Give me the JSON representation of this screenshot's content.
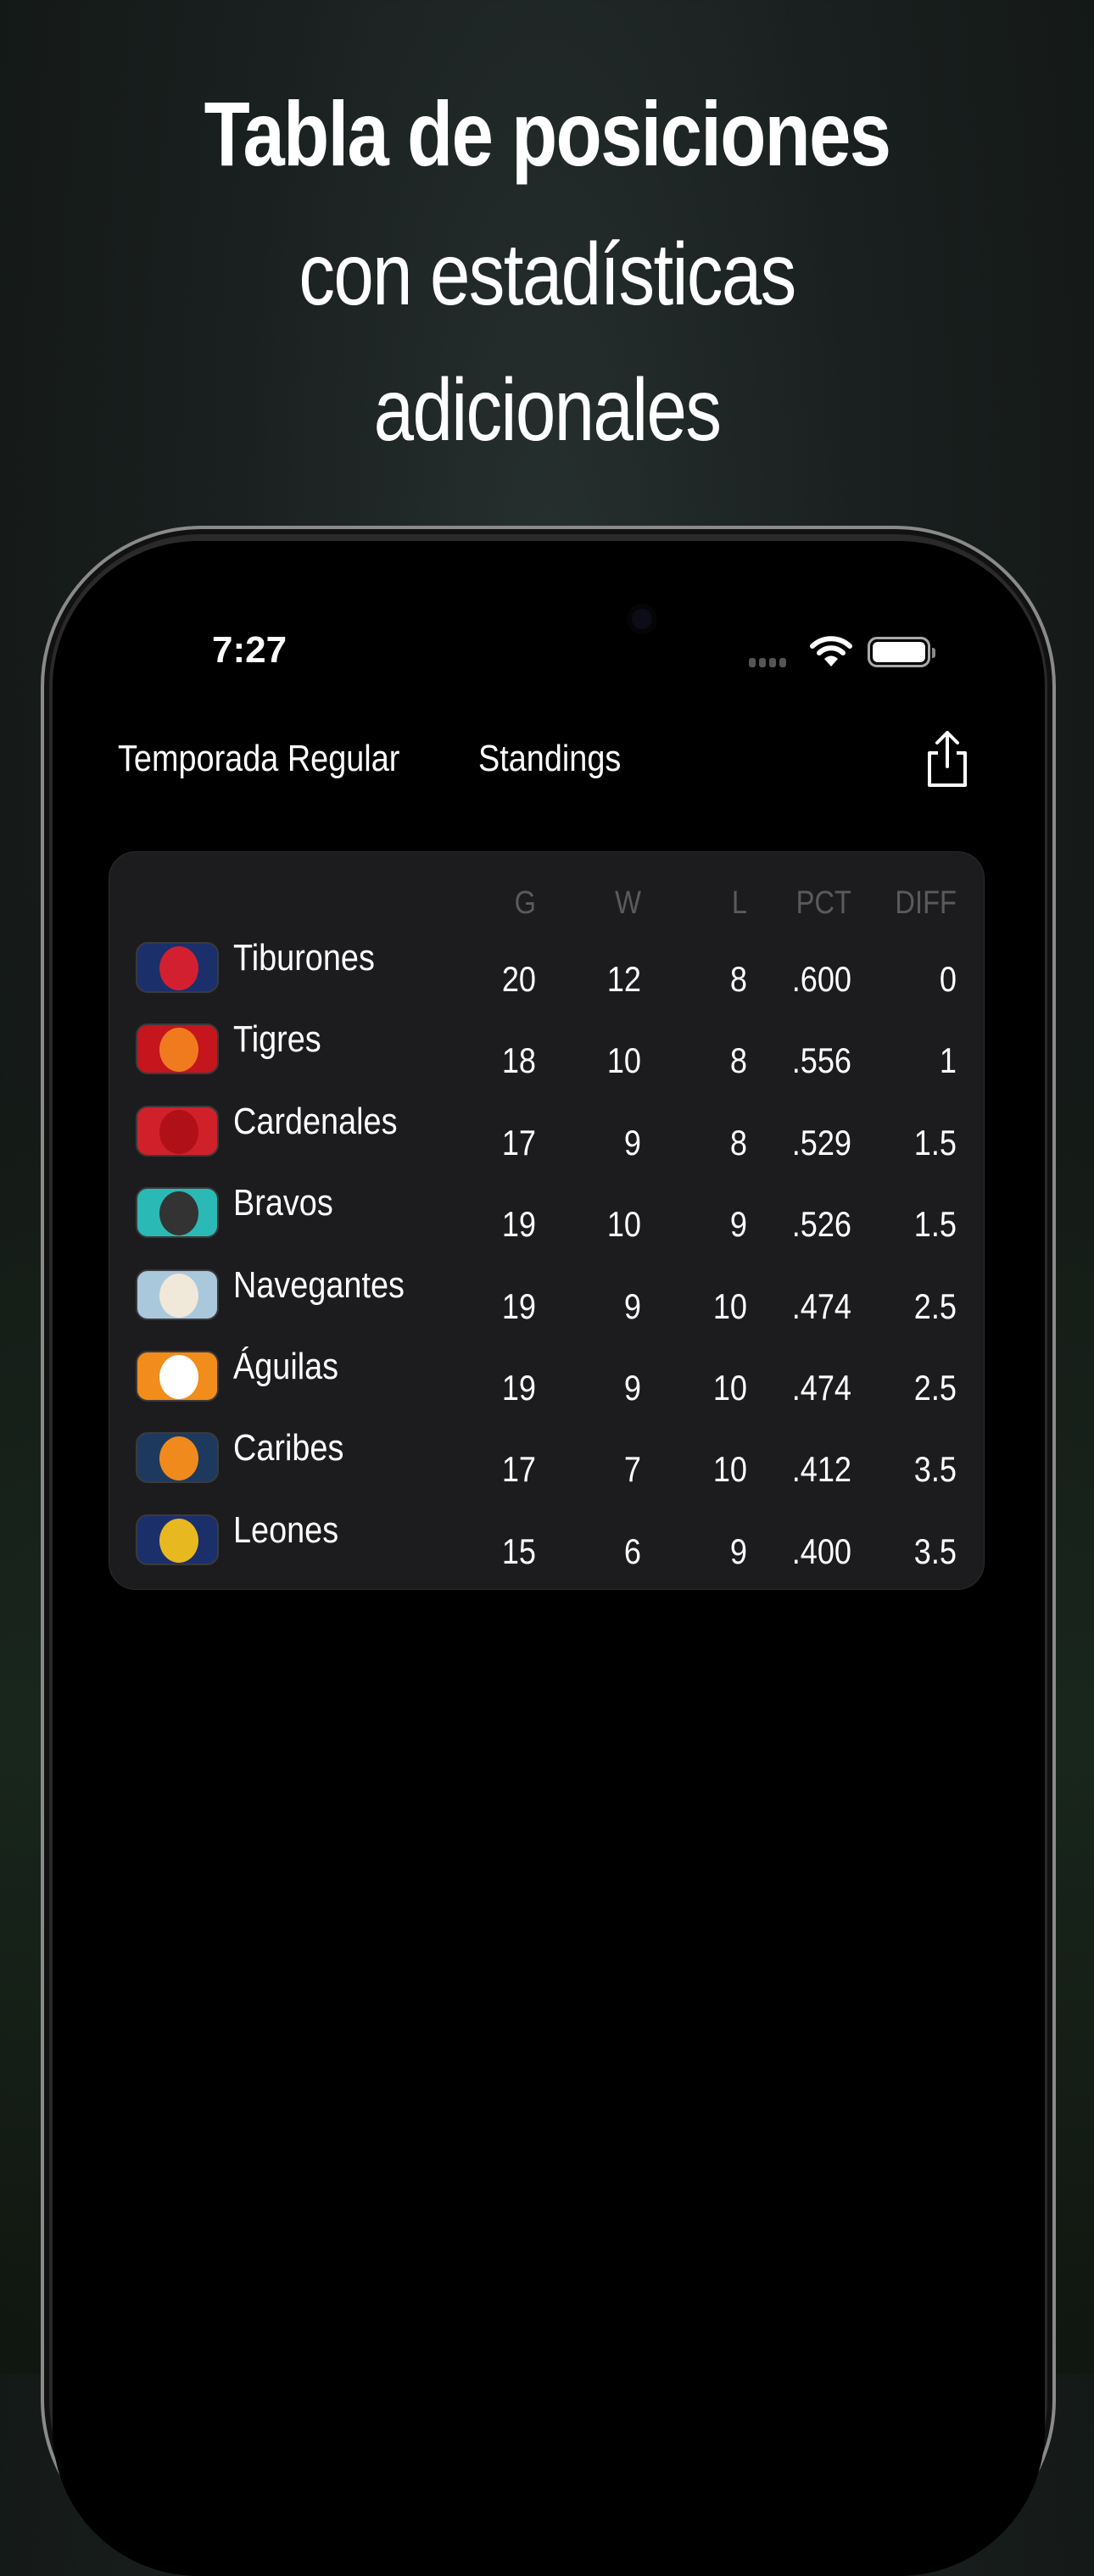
{
  "headline": {
    "line1": "Tabla de posiciones",
    "line2": "con estadísticas",
    "line3": "adicionales"
  },
  "status_bar": {
    "time": "7:27"
  },
  "nav": {
    "title": "Temporada Regular",
    "subtitle": "Standings",
    "share_icon": "share-icon"
  },
  "table": {
    "headers": [
      "G",
      "W",
      "L",
      "PCT",
      "DIFF"
    ],
    "rows": [
      {
        "team": "Tiburones",
        "logo_colors": [
          "#1b2f6b",
          "#d22030"
        ],
        "G": "20",
        "W": "12",
        "L": "8",
        "PCT": ".600",
        "DIFF": "0"
      },
      {
        "team": "Tigres",
        "logo_colors": [
          "#c4161c",
          "#f07b1f"
        ],
        "G": "18",
        "W": "10",
        "L": "8",
        "PCT": ".556",
        "DIFF": "1"
      },
      {
        "team": "Cardenales",
        "logo_colors": [
          "#d0202a",
          "#b01018"
        ],
        "G": "17",
        "W": "9",
        "L": "8",
        "PCT": ".529",
        "DIFF": "1.5"
      },
      {
        "team": "Bravos",
        "logo_colors": [
          "#2bb9b5",
          "#333"
        ],
        "G": "19",
        "W": "10",
        "L": "9",
        "PCT": ".526",
        "DIFF": "1.5"
      },
      {
        "team": "Navegantes",
        "logo_colors": [
          "#a9c8dc",
          "#f0e8d8"
        ],
        "G": "19",
        "W": "9",
        "L": "10",
        "PCT": ".474",
        "DIFF": "2.5"
      },
      {
        "team": "Águilas",
        "logo_colors": [
          "#f28c1a",
          "#fff"
        ],
        "G": "19",
        "W": "9",
        "L": "10",
        "PCT": ".474",
        "DIFF": "2.5"
      },
      {
        "team": "Caribes",
        "logo_colors": [
          "#1d3a5e",
          "#f08a1c"
        ],
        "G": "17",
        "W": "7",
        "L": "10",
        "PCT": ".412",
        "DIFF": "3.5"
      },
      {
        "team": "Leones",
        "logo_colors": [
          "#1b2f6b",
          "#e8b820"
        ],
        "G": "15",
        "W": "6",
        "L": "9",
        "PCT": ".400",
        "DIFF": "3.5"
      }
    ]
  }
}
